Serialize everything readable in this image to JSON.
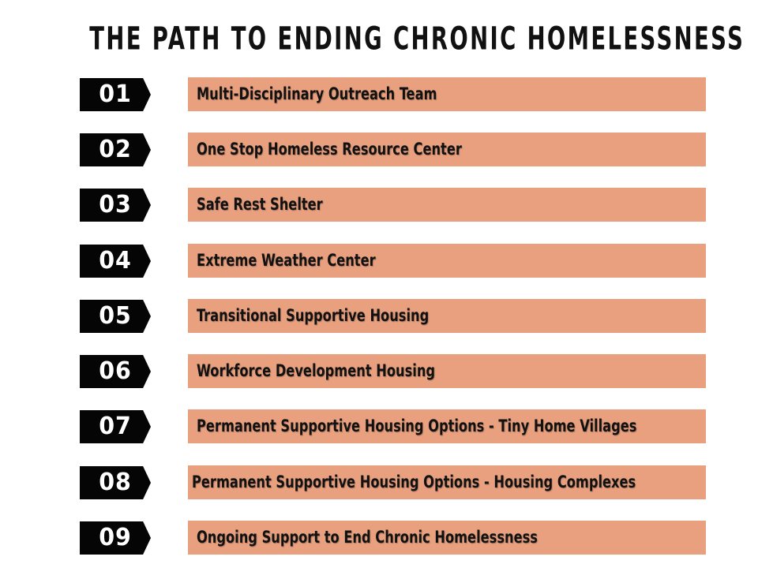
{
  "title": "THE PATH TO ENDING CHRONIC HOMELESSNESS",
  "colors": {
    "badge": "#050505",
    "bar": "#e8a07e",
    "text": "#111111"
  },
  "steps": [
    {
      "number": "01",
      "label": "Multi-Disciplinary Outreach Team"
    },
    {
      "number": "02",
      "label": "One Stop Homeless Resource Center"
    },
    {
      "number": "03",
      "label": "Safe Rest Shelter"
    },
    {
      "number": "04",
      "label": "Extreme Weather Center"
    },
    {
      "number": "05",
      "label": "Transitional Supportive Housing"
    },
    {
      "number": "06",
      "label": "Workforce Development Housing"
    },
    {
      "number": "07",
      "label": "Permanent Supportive Housing Options - Tiny Home Villages"
    },
    {
      "number": "08",
      "label": "Permanent Supportive Housing Options - Housing Complexes"
    },
    {
      "number": "09",
      "label": "Ongoing Support to End Chronic Homelessness"
    }
  ]
}
